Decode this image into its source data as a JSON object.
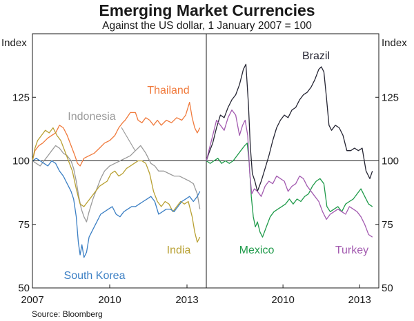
{
  "title": "Emerging Market Currencies",
  "subtitle": "Against the US dollar, 1 January 2007 = 100",
  "source": "Source: Bloomberg",
  "colors": {
    "Thailand": "#f07a3c",
    "Indonesia": "#9a9a9a",
    "South Korea": "#3b7fc4",
    "India": "#b8a032",
    "Brazil": "#252533",
    "Mexico": "#1f9a4a",
    "Turkey": "#a35bb0"
  },
  "chart_data": [
    {
      "type": "line",
      "panel": "left",
      "ylabel": "Index",
      "ylim": [
        50,
        150
      ],
      "yticks": [
        50,
        75,
        100,
        125
      ],
      "xlim": [
        2007,
        2013.75
      ],
      "xticks": [
        {
          "value": 2007.0,
          "label": "2007"
        },
        {
          "value": 2010.0,
          "label": "2010"
        },
        {
          "value": 2013.0,
          "label": "2013"
        }
      ],
      "reference_line": 100,
      "series": [
        {
          "name": "Thailand",
          "x": [
            2007.0,
            2007.1,
            2007.25,
            2007.4,
            2007.6,
            2007.75,
            2007.9,
            2008.05,
            2008.2,
            2008.35,
            2008.5,
            2008.65,
            2008.75,
            2008.85,
            2009.0,
            2009.2,
            2009.4,
            2009.6,
            2009.8,
            2010.0,
            2010.2,
            2010.35,
            2010.5,
            2010.6,
            2010.8,
            2011.0,
            2011.1,
            2011.25,
            2011.4,
            2011.55,
            2011.7,
            2011.85,
            2012.0,
            2012.2,
            2012.4,
            2012.6,
            2012.8,
            2012.95,
            2013.1,
            2013.2,
            2013.3,
            2013.4,
            2013.5
          ],
          "y": [
            100,
            104,
            106,
            107,
            109,
            110,
            111,
            114,
            113,
            110,
            106,
            102,
            99,
            98,
            101,
            102,
            103,
            105,
            107,
            108,
            110,
            113,
            115,
            116,
            119,
            119,
            116,
            115,
            117,
            116,
            114,
            116,
            114,
            116,
            115,
            117,
            116,
            118,
            123,
            117,
            113,
            111,
            113
          ]
        },
        {
          "name": "Indonesia",
          "x": [
            2007.0,
            2007.15,
            2007.3,
            2007.45,
            2007.6,
            2007.75,
            2007.9,
            2008.05,
            2008.2,
            2008.35,
            2008.5,
            2008.6,
            2008.7,
            2008.8,
            2008.9,
            2009.0,
            2009.1,
            2009.2,
            2009.35,
            2009.5,
            2009.65,
            2009.8,
            2010.0,
            2010.2,
            2010.4,
            2010.6,
            2010.8,
            2011.0,
            2011.2,
            2011.4,
            2011.6,
            2011.75,
            2011.9,
            2012.1,
            2012.3,
            2012.5,
            2012.7,
            2012.9,
            2013.1,
            2013.25,
            2013.4,
            2013.5
          ],
          "y": [
            100,
            99,
            98,
            100,
            102,
            104,
            106,
            105,
            103,
            102,
            100,
            97,
            92,
            86,
            81,
            78,
            76,
            80,
            85,
            89,
            93,
            96,
            98,
            99,
            100,
            101,
            102,
            104,
            106,
            103,
            99,
            98,
            96,
            96,
            95,
            94,
            94,
            93,
            92,
            91,
            87,
            81
          ]
        },
        {
          "name": "India",
          "x": [
            2007.0,
            2007.1,
            2007.2,
            2007.35,
            2007.5,
            2007.65,
            2007.8,
            2007.95,
            2008.1,
            2008.25,
            2008.4,
            2008.55,
            2008.7,
            2008.85,
            2009.0,
            2009.15,
            2009.3,
            2009.45,
            2009.6,
            2009.75,
            2009.9,
            2010.05,
            2010.2,
            2010.35,
            2010.5,
            2010.65,
            2010.8,
            2010.95,
            2011.1,
            2011.25,
            2011.4,
            2011.55,
            2011.7,
            2011.85,
            2012.0,
            2012.15,
            2012.3,
            2012.45,
            2012.6,
            2012.75,
            2012.9,
            2013.05,
            2013.2,
            2013.3,
            2013.4,
            2013.5
          ],
          "y": [
            100,
            105,
            108,
            110,
            112,
            111,
            113,
            110,
            108,
            104,
            100,
            96,
            89,
            83,
            82,
            84,
            86,
            88,
            90,
            91,
            92,
            95,
            96,
            94,
            95,
            97,
            98,
            99,
            100,
            100,
            99,
            95,
            88,
            84,
            82,
            84,
            83,
            80,
            82,
            84,
            83,
            84,
            78,
            72,
            68,
            70
          ]
        },
        {
          "name": "South Korea",
          "x": [
            2007.0,
            2007.15,
            2007.3,
            2007.45,
            2007.6,
            2007.75,
            2007.9,
            2008.05,
            2008.2,
            2008.3,
            2008.4,
            2008.5,
            2008.6,
            2008.7,
            2008.78,
            2008.85,
            2008.92,
            2009.0,
            2009.1,
            2009.2,
            2009.35,
            2009.5,
            2009.65,
            2009.8,
            2009.95,
            2010.1,
            2010.25,
            2010.4,
            2010.55,
            2010.7,
            2010.85,
            2011.0,
            2011.15,
            2011.3,
            2011.45,
            2011.6,
            2011.75,
            2011.9,
            2012.05,
            2012.2,
            2012.35,
            2012.5,
            2012.65,
            2012.8,
            2012.95,
            2013.1,
            2013.25,
            2013.4,
            2013.5
          ],
          "y": [
            100,
            101,
            100,
            99,
            98,
            100,
            99,
            96,
            94,
            92,
            90,
            88,
            85,
            78,
            68,
            63,
            67,
            62,
            64,
            70,
            73,
            76,
            79,
            80,
            81,
            82,
            79,
            78,
            80,
            81,
            82,
            82,
            83,
            84,
            85,
            86,
            84,
            79,
            80,
            81,
            81,
            80,
            82,
            84,
            85,
            86,
            84,
            86,
            88
          ]
        }
      ],
      "labels": [
        "Thailand",
        "Indonesia",
        "India",
        "South Korea"
      ]
    },
    {
      "type": "line",
      "panel": "right",
      "ylabel": "Index",
      "ylim": [
        50,
        150
      ],
      "yticks": [
        50,
        75,
        100,
        125
      ],
      "xlim": [
        2007,
        2013.75
      ],
      "xticks": [
        {
          "value": 2010.0,
          "label": "2010"
        },
        {
          "value": 2013.0,
          "label": "2013"
        }
      ],
      "reference_line": 100,
      "series": [
        {
          "name": "Brazil",
          "x": [
            2007.0,
            2007.1,
            2007.25,
            2007.4,
            2007.55,
            2007.7,
            2007.85,
            2008.0,
            2008.15,
            2008.3,
            2008.45,
            2008.55,
            2008.65,
            2008.72,
            2008.8,
            2008.9,
            2009.0,
            2009.15,
            2009.3,
            2009.45,
            2009.6,
            2009.75,
            2009.9,
            2010.05,
            2010.2,
            2010.35,
            2010.5,
            2010.65,
            2010.8,
            2010.95,
            2011.1,
            2011.25,
            2011.4,
            2011.5,
            2011.6,
            2011.7,
            2011.8,
            2011.9,
            2012.05,
            2012.2,
            2012.35,
            2012.5,
            2012.65,
            2012.8,
            2012.95,
            2013.1,
            2013.25,
            2013.4,
            2013.5
          ],
          "y": [
            100,
            103,
            107,
            113,
            118,
            117,
            121,
            124,
            126,
            130,
            136,
            138,
            122,
            106,
            95,
            92,
            88,
            92,
            97,
            102,
            108,
            113,
            116,
            118,
            117,
            120,
            121,
            124,
            126,
            127,
            129,
            132,
            136,
            137,
            135,
            125,
            114,
            112,
            114,
            113,
            110,
            104,
            104,
            105,
            104,
            105,
            96,
            93,
            96
          ]
        },
        {
          "name": "Mexico",
          "x": [
            2007.0,
            2007.15,
            2007.3,
            2007.45,
            2007.6,
            2007.75,
            2007.9,
            2008.05,
            2008.2,
            2008.35,
            2008.5,
            2008.6,
            2008.68,
            2008.76,
            2008.84,
            2008.92,
            2009.0,
            2009.1,
            2009.2,
            2009.35,
            2009.5,
            2009.65,
            2009.8,
            2009.95,
            2010.1,
            2010.25,
            2010.4,
            2010.55,
            2010.7,
            2010.85,
            2011.0,
            2011.15,
            2011.3,
            2011.45,
            2011.6,
            2011.72,
            2011.85,
            2012.0,
            2012.15,
            2012.3,
            2012.45,
            2012.6,
            2012.75,
            2012.9,
            2013.05,
            2013.2,
            2013.35,
            2013.5
          ],
          "y": [
            100,
            99,
            100,
            101,
            99,
            100,
            99,
            100,
            102,
            104,
            106,
            107,
            99,
            86,
            78,
            74,
            76,
            72,
            70,
            74,
            78,
            80,
            81,
            82,
            83,
            85,
            83,
            85,
            84,
            86,
            87,
            90,
            92,
            93,
            91,
            82,
            80,
            81,
            82,
            80,
            83,
            84,
            85,
            87,
            89,
            86,
            83,
            82
          ]
        },
        {
          "name": "Turkey",
          "x": [
            2007.0,
            2007.1,
            2007.25,
            2007.4,
            2007.55,
            2007.7,
            2007.85,
            2008.0,
            2008.15,
            2008.3,
            2008.42,
            2008.52,
            2008.62,
            2008.7,
            2008.78,
            2008.88,
            2009.0,
            2009.15,
            2009.3,
            2009.45,
            2009.6,
            2009.75,
            2009.9,
            2010.05,
            2010.2,
            2010.35,
            2010.5,
            2010.65,
            2010.8,
            2010.95,
            2011.1,
            2011.25,
            2011.4,
            2011.55,
            2011.7,
            2011.85,
            2012.0,
            2012.15,
            2012.3,
            2012.45,
            2012.6,
            2012.75,
            2012.9,
            2013.05,
            2013.2,
            2013.35,
            2013.5
          ],
          "y": [
            100,
            104,
            110,
            116,
            114,
            112,
            117,
            120,
            118,
            110,
            114,
            116,
            110,
            95,
            87,
            89,
            88,
            86,
            90,
            92,
            91,
            94,
            93,
            92,
            88,
            90,
            91,
            94,
            93,
            90,
            88,
            86,
            84,
            80,
            77,
            79,
            80,
            81,
            80,
            79,
            82,
            81,
            80,
            78,
            75,
            71,
            70
          ]
        }
      ],
      "labels": [
        "Brazil",
        "Mexico",
        "Turkey"
      ]
    }
  ]
}
